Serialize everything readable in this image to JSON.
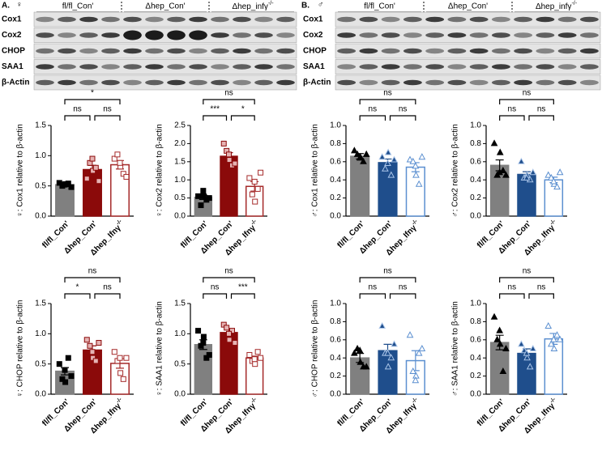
{
  "panels": [
    {
      "label": "A.",
      "sex": "♀"
    },
    {
      "label": "B.",
      "sex": "♂"
    }
  ],
  "blots": [
    {
      "groups": [
        "fl/fl_Con'",
        "Δhep_Con'",
        "Δhep_infγ-/-"
      ],
      "rows": [
        "Cox1",
        "Cox2",
        "CHOP",
        "SAA1",
        "β-Actin"
      ]
    },
    {
      "groups": [
        "fl/fl_Con'",
        "Δhep_Con'",
        "Δhep_infγ-/-"
      ],
      "rows": [
        "Cox1",
        "Cox2",
        "CHOP",
        "SAA1",
        "β-Actin"
      ]
    }
  ],
  "chart_data": [
    {
      "type": "bar",
      "ylabel": "♀: Cox1 relative to β-actin",
      "categories": [
        "fl/fl_Con'",
        "Δhep_Con'",
        "Δhep_Ifnγ-/-"
      ],
      "values": [
        0.52,
        0.77,
        0.85
      ],
      "errors": [
        0.03,
        0.07,
        0.07
      ],
      "points": [
        [
          0.55,
          0.5,
          0.53,
          0.54,
          0.48,
          0.52
        ],
        [
          0.62,
          0.88,
          0.75,
          0.8,
          0.58,
          0.95
        ],
        [
          0.95,
          1.02,
          0.82,
          0.7,
          0.65,
          0.88
        ]
      ],
      "significance": [
        "ns",
        "ns",
        "*"
      ],
      "marker": "square",
      "bar_fills": [
        "#808080",
        "#8b0a0a",
        "#ffffff"
      ],
      "bar_edges": [
        "#808080",
        "#8b0a0a",
        "#a52a2a"
      ],
      "point_fills": [
        "#000000",
        "#e6b3b3",
        "#ffffff"
      ],
      "point_edges": [
        "#000000",
        "#8b0a0a",
        "#a52a2a"
      ],
      "ylim": [
        0,
        1.5
      ],
      "yticks": [
        {
          "value": 0,
          "label": "0.0"
        },
        0.5,
        {
          "value": 1,
          "label": "1.0"
        },
        1.5
      ]
    },
    {
      "type": "bar",
      "ylabel": "♀: Cox2 relative to β-actin",
      "categories": [
        "fl/fl_Con'",
        "Δhep_Con'",
        "Δhep_Ifnγ-/-"
      ],
      "values": [
        0.52,
        1.65,
        0.82
      ],
      "errors": [
        0.06,
        0.1,
        0.13
      ],
      "points": [
        [
          0.55,
          0.3,
          0.55,
          0.45,
          0.5,
          0.7
        ],
        [
          2.0,
          1.8,
          1.55,
          1.4,
          1.45,
          1.7
        ],
        [
          1.05,
          0.6,
          0.4,
          0.75,
          1.2,
          0.95
        ]
      ],
      "significance": [
        "***",
        "*",
        "ns"
      ],
      "marker": "square",
      "bar_fills": [
        "#808080",
        "#8b0a0a",
        "#ffffff"
      ],
      "bar_edges": [
        "#808080",
        "#8b0a0a",
        "#a52a2a"
      ],
      "point_fills": [
        "#000000",
        "#e6b3b3",
        "#ffffff"
      ],
      "point_edges": [
        "#000000",
        "#8b0a0a",
        "#a52a2a"
      ],
      "ylim": [
        0,
        2.5
      ],
      "yticks": [
        {
          "value": 0,
          "label": "0.0"
        },
        0.5,
        {
          "value": 1,
          "label": "1.0"
        },
        1.5,
        {
          "value": 2,
          "label": "2.0"
        },
        2.5
      ]
    },
    {
      "type": "bar",
      "ylabel": "♀: CHOP relative to β-actin",
      "categories": [
        "fl/fl_Con'",
        "Δhep_Con'",
        "Δhep_Ifnγ-/-"
      ],
      "values": [
        0.38,
        0.73,
        0.51
      ],
      "errors": [
        0.06,
        0.07,
        0.08
      ],
      "points": [
        [
          0.5,
          0.25,
          0.2,
          0.6,
          0.3,
          0.4
        ],
        [
          0.9,
          0.8,
          0.6,
          0.55,
          0.85,
          0.7
        ],
        [
          0.7,
          0.55,
          0.35,
          0.25,
          0.6,
          0.6
        ]
      ],
      "significance": [
        "*",
        "ns",
        "ns"
      ],
      "marker": "square",
      "bar_fills": [
        "#808080",
        "#8b0a0a",
        "#ffffff"
      ],
      "bar_edges": [
        "#808080",
        "#8b0a0a",
        "#a52a2a"
      ],
      "point_fills": [
        "#000000",
        "#e6b3b3",
        "#ffffff"
      ],
      "point_edges": [
        "#000000",
        "#8b0a0a",
        "#a52a2a"
      ],
      "ylim": [
        0,
        1.5
      ],
      "yticks": [
        {
          "value": 0,
          "label": "0.0"
        },
        0.5,
        {
          "value": 1,
          "label": "1.0"
        },
        1.5
      ]
    },
    {
      "type": "bar",
      "ylabel": "♀: SAA1 relative to β-actin",
      "categories": [
        "fl/fl_Con'",
        "Δhep_Con'",
        "Δhep_Ifnγ-/-"
      ],
      "values": [
        0.82,
        1.02,
        0.6
      ],
      "errors": [
        0.08,
        0.05,
        0.03
      ],
      "points": [
        [
          1.05,
          0.8,
          0.95,
          0.6,
          0.65,
          0.85
        ],
        [
          1.15,
          1.1,
          0.9,
          1.05,
          0.85,
          1.0
        ],
        [
          0.65,
          0.55,
          0.5,
          0.7,
          0.6,
          0.58
        ]
      ],
      "significance": [
        "ns",
        "***",
        "ns"
      ],
      "marker": "square",
      "bar_fills": [
        "#808080",
        "#8b0a0a",
        "#ffffff"
      ],
      "bar_edges": [
        "#808080",
        "#8b0a0a",
        "#a52a2a"
      ],
      "point_fills": [
        "#000000",
        "#e6b3b3",
        "#ffffff"
      ],
      "point_edges": [
        "#000000",
        "#8b0a0a",
        "#a52a2a"
      ],
      "ylim": [
        0,
        1.5
      ],
      "yticks": [
        {
          "value": 0,
          "label": "0.0"
        },
        0.5,
        {
          "value": 1,
          "label": "1.0"
        },
        1.5
      ]
    },
    {
      "type": "bar",
      "ylabel": "♂: Cox1 relative to β-actin",
      "categories": [
        "fl/fl_Con'",
        "Δhep_Con'",
        "Δhep_Ifnγ-/-"
      ],
      "values": [
        0.66,
        0.59,
        0.54
      ],
      "errors": [
        0.03,
        0.04,
        0.05
      ],
      "points": [
        [
          0.72,
          0.68,
          0.65,
          0.6,
          0.68,
          0.64
        ],
        [
          0.65,
          0.52,
          0.7,
          0.45,
          0.62,
          0.58
        ],
        [
          0.62,
          0.6,
          0.45,
          0.35,
          0.65,
          0.55
        ]
      ],
      "significance": [
        "ns",
        "ns",
        "ns"
      ],
      "marker": "triangle",
      "bar_fills": [
        "#808080",
        "#1f4e8c",
        "#ffffff"
      ],
      "bar_edges": [
        "#808080",
        "#1f4e8c",
        "#5b8fd0"
      ],
      "point_fills": [
        "#000000",
        "#1f4e8c",
        "#ffffff"
      ],
      "point_edges": [
        "#000000",
        "#a9c4e8",
        "#5b8fd0"
      ],
      "ylim": [
        0,
        1
      ],
      "yticks": [
        {
          "value": 0,
          "label": "0.0"
        },
        0.2,
        0.4,
        0.6,
        0.8,
        {
          "value": 1,
          "label": "1.0"
        }
      ]
    },
    {
      "type": "bar",
      "ylabel": "♂: Cox2 relative to β-actin",
      "categories": [
        "fl/fl_Con'",
        "Δhep_Con'",
        "Δhep_Ifnγ-/-"
      ],
      "values": [
        0.56,
        0.46,
        0.4
      ],
      "errors": [
        0.06,
        0.03,
        0.03
      ],
      "points": [
        [
          0.8,
          0.45,
          0.7,
          0.5,
          0.45,
          0.48
        ],
        [
          0.6,
          0.42,
          0.45,
          0.4,
          0.48,
          0.42
        ],
        [
          0.45,
          0.42,
          0.35,
          0.32,
          0.48,
          0.38
        ]
      ],
      "significance": [
        "ns",
        "ns",
        "ns"
      ],
      "marker": "triangle",
      "bar_fills": [
        "#808080",
        "#1f4e8c",
        "#ffffff"
      ],
      "bar_edges": [
        "#808080",
        "#1f4e8c",
        "#5b8fd0"
      ],
      "point_fills": [
        "#000000",
        "#1f4e8c",
        "#ffffff"
      ],
      "point_edges": [
        "#000000",
        "#a9c4e8",
        "#5b8fd0"
      ],
      "ylim": [
        0,
        1
      ],
      "yticks": [
        {
          "value": 0,
          "label": "0.0"
        },
        0.2,
        0.4,
        0.6,
        0.8,
        {
          "value": 1,
          "label": "1.0"
        }
      ]
    },
    {
      "type": "bar",
      "ylabel": "♂: CHOP relative to β-actin",
      "categories": [
        "fl/fl_Con'",
        "Δhep_Con'",
        "Δhep_Ifnγ-/-"
      ],
      "values": [
        0.4,
        0.48,
        0.37
      ],
      "errors": [
        0.05,
        0.07,
        0.11
      ],
      "points": [
        [
          0.45,
          0.5,
          0.35,
          0.3,
          0.3,
          0.48
        ],
        [
          0.75,
          0.45,
          0.3,
          0.4,
          0.55,
          0.45
        ],
        [
          0.65,
          0.25,
          0.2,
          0.45,
          0.5,
          0.15
        ]
      ],
      "significance": [
        "ns",
        "ns",
        "ns"
      ],
      "marker": "triangle",
      "bar_fills": [
        "#808080",
        "#1f4e8c",
        "#ffffff"
      ],
      "bar_edges": [
        "#808080",
        "#1f4e8c",
        "#5b8fd0"
      ],
      "point_fills": [
        "#000000",
        "#1f4e8c",
        "#ffffff"
      ],
      "point_edges": [
        "#000000",
        "#a9c4e8",
        "#5b8fd0"
      ],
      "ylim": [
        0,
        1
      ],
      "yticks": [
        {
          "value": 0,
          "label": "0.0"
        },
        0.2,
        0.4,
        0.6,
        0.8,
        {
          "value": 1,
          "label": "1.0"
        }
      ]
    },
    {
      "type": "bar",
      "ylabel": "♂: SAA1 relative to β-actin",
      "categories": [
        "fl/fl_Con'",
        "Δhep_Con'",
        "Δhep_Ifnγ-/-"
      ],
      "values": [
        0.57,
        0.45,
        0.61
      ],
      "errors": [
        0.08,
        0.05,
        0.06
      ],
      "points": [
        [
          0.85,
          0.6,
          0.55,
          0.25,
          0.5,
          0.7
        ],
        [
          0.55,
          0.48,
          0.4,
          0.3,
          0.5,
          0.45
        ],
        [
          0.75,
          0.55,
          0.5,
          0.65,
          0.6,
          0.6
        ]
      ],
      "significance": [
        "ns",
        "ns",
        "ns"
      ],
      "marker": "triangle",
      "bar_fills": [
        "#808080",
        "#1f4e8c",
        "#ffffff"
      ],
      "bar_edges": [
        "#808080",
        "#1f4e8c",
        "#5b8fd0"
      ],
      "point_fills": [
        "#000000",
        "#1f4e8c",
        "#ffffff"
      ],
      "point_edges": [
        "#000000",
        "#a9c4e8",
        "#5b8fd0"
      ],
      "ylim": [
        0,
        1
      ],
      "yticks": [
        {
          "value": 0,
          "label": "0.0"
        },
        0.2,
        0.4,
        0.6,
        0.8,
        {
          "value": 1,
          "label": "1.0"
        }
      ]
    }
  ]
}
